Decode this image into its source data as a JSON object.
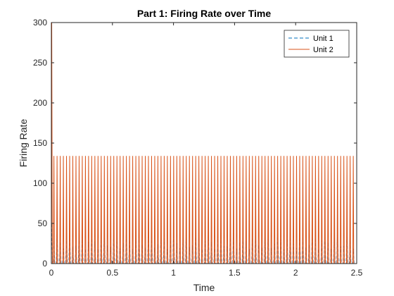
{
  "chart_data": {
    "type": "line",
    "title": "Part 1: Firing Rate over Time",
    "xlabel": "Time",
    "ylabel": "Firing Rate",
    "xlim": [
      0,
      2.5
    ],
    "ylim": [
      0,
      300
    ],
    "xticks": [
      0,
      0.5,
      1,
      1.5,
      2,
      2.5
    ],
    "xtick_labels": [
      "0",
      "0.5",
      "1",
      "1.5",
      "2",
      "2.5"
    ],
    "yticks": [
      0,
      50,
      100,
      150,
      200,
      250,
      300
    ],
    "ytick_labels": [
      "0",
      "50",
      "100",
      "150",
      "200",
      "250",
      "300"
    ],
    "grid": false,
    "legend": {
      "position": "top-right"
    },
    "oscillation_period": 0.0258,
    "series": [
      {
        "name": "Unit 1",
        "color": "#0072BD",
        "line_style": "dashed",
        "initial_peak": 50,
        "peak_range": [
          18,
          40
        ],
        "trough": 0
      },
      {
        "name": "Unit 2",
        "color": "#D95319",
        "line_style": "solid",
        "initial_peak": 300,
        "peak": 134,
        "trough": 0
      }
    ]
  }
}
